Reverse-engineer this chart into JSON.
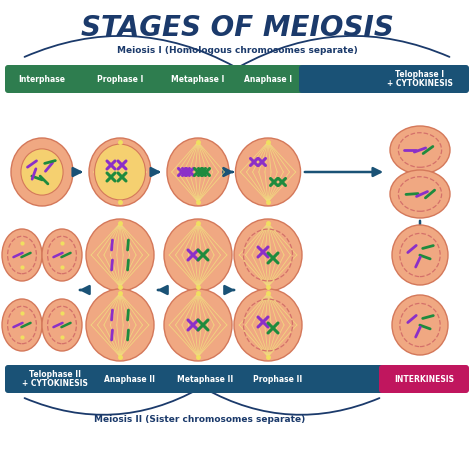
{
  "title": "STAGES OF MEIOSIS",
  "title_color": "#1b3a6b",
  "subtitle1": "Meiosis I (Homologous chromosomes separate)",
  "subtitle2": "Meiosis II (Sister chromosomes separate)",
  "bg_color": "#ffffff",
  "row1_labels": [
    "Interphase",
    "Prophase I",
    "Metaphase I",
    "Anaphase I",
    "Telophase I\n+ CYTOKINESIS"
  ],
  "row2_labels": [
    "Telophase II\n+ CYTOKINESIS",
    "Anaphase II",
    "Metaphase II",
    "Prophase II",
    "INTERKINESIS"
  ],
  "green_color": "#2e7d4f",
  "blue_color": "#1a5276",
  "pink_color": "#c0165e",
  "cell_outer": "#f0a882",
  "cell_border": "#d4785a",
  "nucleus_color": "#f5d070",
  "spindle_color": "#f0e080",
  "chr_purple": "#8b2fc8",
  "chr_green": "#1e8b3e",
  "arrow_color": "#1a5276",
  "dashed_color": "#d4706a"
}
